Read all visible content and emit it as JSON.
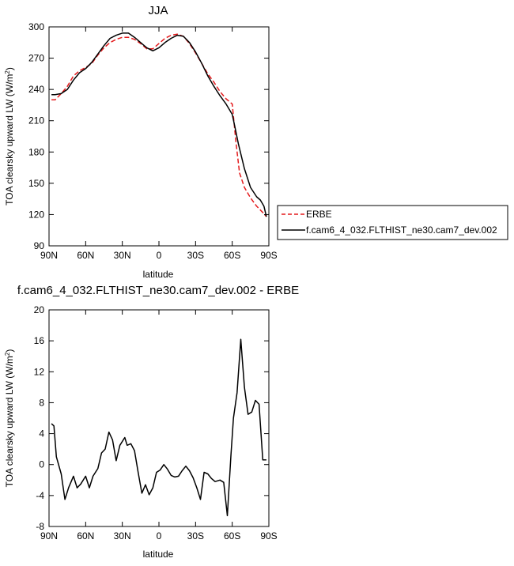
{
  "chart_data": [
    {
      "type": "line",
      "title": "JJA",
      "xlabel": "latitude",
      "ylabel": "TOA clearsky upward LW (W/m²)",
      "ylabel_main": "TOA clearsky upward LW (W/m",
      "ylabel_sup": "2",
      "ylabel_tail": ")",
      "xlim": [
        90,
        -90
      ],
      "ylim": [
        90,
        300
      ],
      "xticks": [
        90,
        60,
        30,
        0,
        -30,
        -60,
        -90
      ],
      "xtick_labels": [
        "90N",
        "60N",
        "30N",
        "0",
        "30S",
        "60S",
        "90S"
      ],
      "yticks": [
        90,
        120,
        150,
        180,
        210,
        240,
        270,
        300
      ],
      "ytick_labels": [
        "90",
        "120",
        "150",
        "180",
        "210",
        "240",
        "270",
        "300"
      ],
      "legend": "right-outside",
      "series": [
        {
          "name": "ERBE",
          "color": "#e41a1c",
          "dash": "dashed",
          "x": [
            88,
            85,
            80,
            75,
            70,
            65,
            60,
            55,
            50,
            45,
            40,
            35,
            30,
            25,
            20,
            15,
            10,
            5,
            0,
            -5,
            -10,
            -15,
            -20,
            -25,
            -30,
            -35,
            -40,
            -45,
            -50,
            -55,
            -60,
            -63,
            -66,
            -70,
            -75,
            -80,
            -85,
            -88
          ],
          "y": [
            230,
            230,
            236,
            243,
            253,
            258,
            261,
            265,
            273,
            280,
            285,
            288,
            290,
            290,
            288,
            284,
            279,
            279,
            284,
            289,
            292,
            293,
            291,
            284,
            275,
            265,
            255,
            247,
            238,
            231,
            226,
            190,
            160,
            146,
            136,
            128,
            122,
            118
          ]
        },
        {
          "name": "f.cam6_4_032.FLTHIST_ne30.cam7_dev.002",
          "color": "#000000",
          "dash": "solid",
          "x": [
            88,
            85,
            80,
            75,
            70,
            65,
            60,
            55,
            50,
            45,
            40,
            35,
            30,
            25,
            20,
            15,
            10,
            5,
            0,
            -5,
            -10,
            -15,
            -20,
            -25,
            -30,
            -35,
            -40,
            -45,
            -50,
            -55,
            -60,
            -62,
            -65,
            -70,
            -75,
            -80,
            -83,
            -86,
            -88
          ],
          "y": [
            235,
            235,
            236,
            240,
            249,
            256,
            260,
            266,
            274,
            282,
            289,
            292,
            294,
            294,
            290,
            285,
            280,
            277,
            280,
            285,
            289,
            292,
            291,
            285,
            276,
            265,
            253,
            243,
            234,
            226,
            216,
            205,
            188,
            164,
            146,
            137,
            134,
            128,
            118
          ]
        }
      ]
    },
    {
      "type": "line",
      "title": "f.cam6_4_032.FLTHIST_ne30.cam7_dev.002 - ERBE",
      "xlabel": "latitude",
      "ylabel": "TOA clearsky upward LW (W/m²)",
      "ylabel_main": "TOA clearsky upward LW (W/m",
      "ylabel_sup": "2",
      "ylabel_tail": ")",
      "xlim": [
        90,
        -90
      ],
      "ylim": [
        -8,
        20
      ],
      "xticks": [
        90,
        60,
        30,
        0,
        -30,
        -60,
        -90
      ],
      "xtick_labels": [
        "90N",
        "60N",
        "30N",
        "0",
        "30S",
        "60S",
        "90S"
      ],
      "yticks": [
        -8,
        -4,
        0,
        4,
        8,
        12,
        16,
        20
      ],
      "ytick_labels": [
        "-8",
        "-4",
        "0",
        "4",
        "8",
        "12",
        "16",
        "20"
      ],
      "series": [
        {
          "color": "#000000",
          "dash": "solid",
          "x": [
            88,
            86,
            84,
            80,
            77,
            74,
            70,
            67,
            64,
            60,
            57,
            54,
            50,
            47,
            44,
            41,
            38,
            35,
            32,
            28,
            26,
            23,
            20,
            17,
            14,
            11,
            8,
            5,
            2,
            -1,
            -4,
            -7,
            -10,
            -13,
            -16,
            -19,
            -22,
            -25,
            -28,
            -31,
            -34,
            -37,
            -40,
            -43,
            -46,
            -50,
            -53,
            -56,
            -59,
            -61,
            -64,
            -67,
            -70,
            -73,
            -76,
            -79,
            -82,
            -85,
            -88
          ],
          "y": [
            5.3,
            5.0,
            1.0,
            -1.2,
            -4.5,
            -3.0,
            -1.5,
            -3.0,
            -2.5,
            -1.5,
            -3.0,
            -1.5,
            -0.5,
            1.5,
            2.0,
            4.2,
            3.2,
            0.5,
            2.5,
            3.5,
            2.5,
            2.7,
            1.8,
            -1.0,
            -3.7,
            -2.6,
            -3.9,
            -3.0,
            -1.0,
            -0.7,
            0.0,
            -0.6,
            -1.4,
            -1.6,
            -1.5,
            -0.8,
            -0.2,
            -0.8,
            -1.7,
            -3.0,
            -4.5,
            -1.0,
            -1.2,
            -1.8,
            -2.2,
            -2.0,
            -2.3,
            -6.6,
            1.3,
            6.0,
            9.3,
            16.2,
            10.0,
            6.5,
            6.8,
            8.3,
            7.8,
            0.6,
            0.6
          ]
        }
      ]
    }
  ]
}
